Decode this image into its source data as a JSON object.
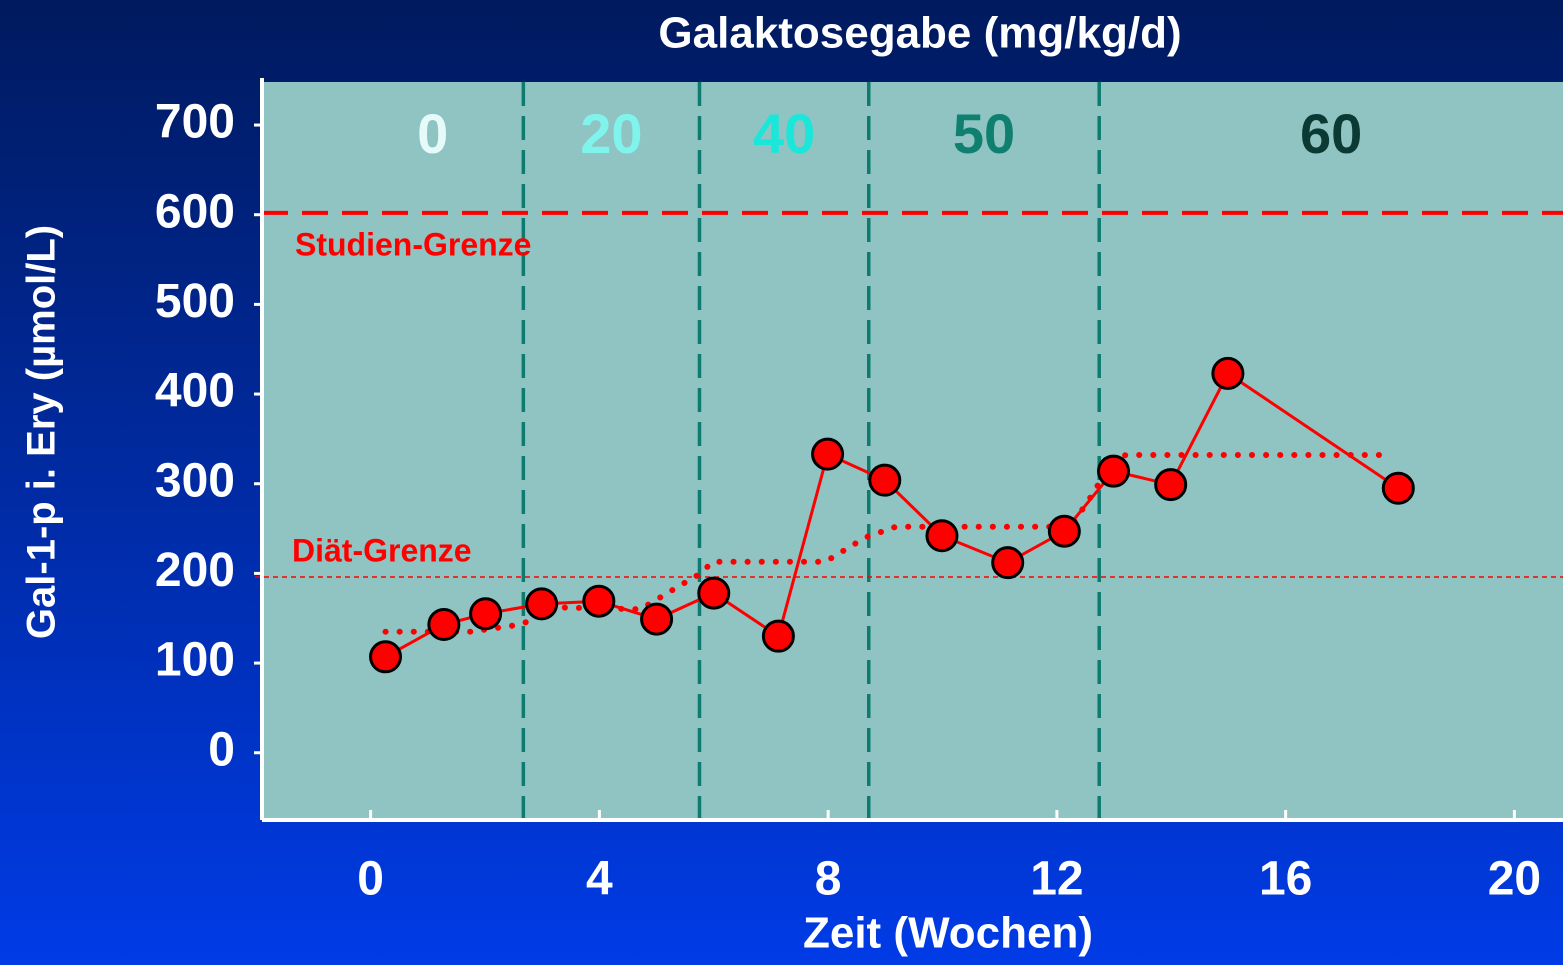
{
  "chart_data": {
    "type": "line",
    "title": "Galaktosegabe (mg/kg/d)",
    "x_label": "Zeit (Wochen)",
    "y_label": "Gal-1-p i. Ery (µmol/L)",
    "xlim": [
      -1.9,
      20.85
    ],
    "ylim": [
      -75,
      748
    ],
    "xticks": [
      0,
      4,
      8,
      12,
      16,
      20
    ],
    "yticks": [
      0,
      100,
      200,
      300,
      400,
      500,
      600,
      700
    ],
    "series": [
      {
        "color": "#ff0000",
        "style": "solid",
        "x": [
          0.26,
          1.28,
          2.01,
          2.99,
          3.99,
          5.0,
          6.0,
          7.13,
          7.99,
          8.99,
          9.99,
          11.14,
          12.13,
          12.99,
          13.99,
          14.99,
          17.97
        ],
        "values": [
          107,
          143,
          155,
          166,
          169,
          149,
          178,
          130,
          333,
          304,
          242,
          212,
          247,
          314,
          299,
          423,
          295
        ]
      },
      {
        "color": "#ff0000",
        "style": "dotted",
        "x": [
          0.26,
          1.75,
          2.62,
          3.32,
          4.72,
          5.24,
          5.77,
          5.98,
          7.95,
          8.65,
          9.18,
          12.24,
          12.59,
          12.94,
          13.2,
          17.83
        ],
        "values": [
          135,
          135,
          143,
          162,
          160,
          180,
          200,
          213,
          213,
          240,
          252,
          252,
          285,
          322,
          332,
          332
        ]
      }
    ],
    "reference_lines": [
      {
        "value": 602,
        "label": "Studien-Grenze",
        "color": "#ff0000",
        "style": "dashed"
      },
      {
        "value": 196,
        "label": "Diät-Grenze",
        "color": "#ff0000",
        "style": "thin-dashed"
      }
    ],
    "dose_boundaries": [
      2.67,
      5.75,
      8.71,
      12.74
    ],
    "doses": [
      0,
      20,
      40,
      50,
      60
    ],
    "dose_colors": [
      "#e6fafa",
      "#80f4ec",
      "#1ae6da",
      "#0f7f70",
      "#0b3a34"
    ],
    "boundary_color": "#0e7b70",
    "plot_background": "#8fc4c2"
  }
}
